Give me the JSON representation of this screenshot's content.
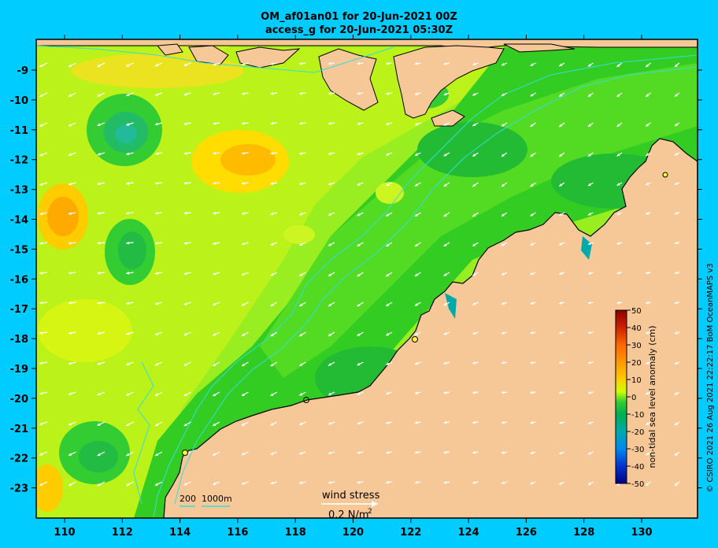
{
  "header": {
    "title_line1": "OM_af01an01 for 20-Jun-2021 00Z",
    "title_line2": "access_g for 20-Jun-2021 05:30Z"
  },
  "map": {
    "lon_ticks": [
      "110",
      "112",
      "114",
      "116",
      "118",
      "120",
      "122",
      "124",
      "126",
      "128",
      "130"
    ],
    "lat_ticks": [
      "-9",
      "-10",
      "-11",
      "-12",
      "-13",
      "-14",
      "-15",
      "-16",
      "-17",
      "-18",
      "-19",
      "-20",
      "-21",
      "-22",
      "-23"
    ],
    "land_color": "#f7c897",
    "ocean_base_color": "#33cc33"
  },
  "legend": {
    "label": "non-tidal sea level anomaly (cm)",
    "ticks": [
      "50",
      "40",
      "30",
      "20",
      "10",
      "0",
      "-10",
      "-20",
      "-30",
      "-40",
      "-50"
    ],
    "colors": [
      "#8b0000",
      "#cc3300",
      "#ff6600",
      "#ff9900",
      "#ffcc00",
      "#ccff00",
      "#33cc33",
      "#009966",
      "#00aaaa",
      "#0066ff",
      "#000099"
    ]
  },
  "depth_legend": {
    "label1": "200",
    "label2": "1000m"
  },
  "wind_key": {
    "title": "wind stress",
    "value": "0.2 N/m",
    "superscript": "2"
  },
  "credit": "© CSIRO 2021  26 Aug 2021 22:22:17 BoM OceanMAPS v3"
}
